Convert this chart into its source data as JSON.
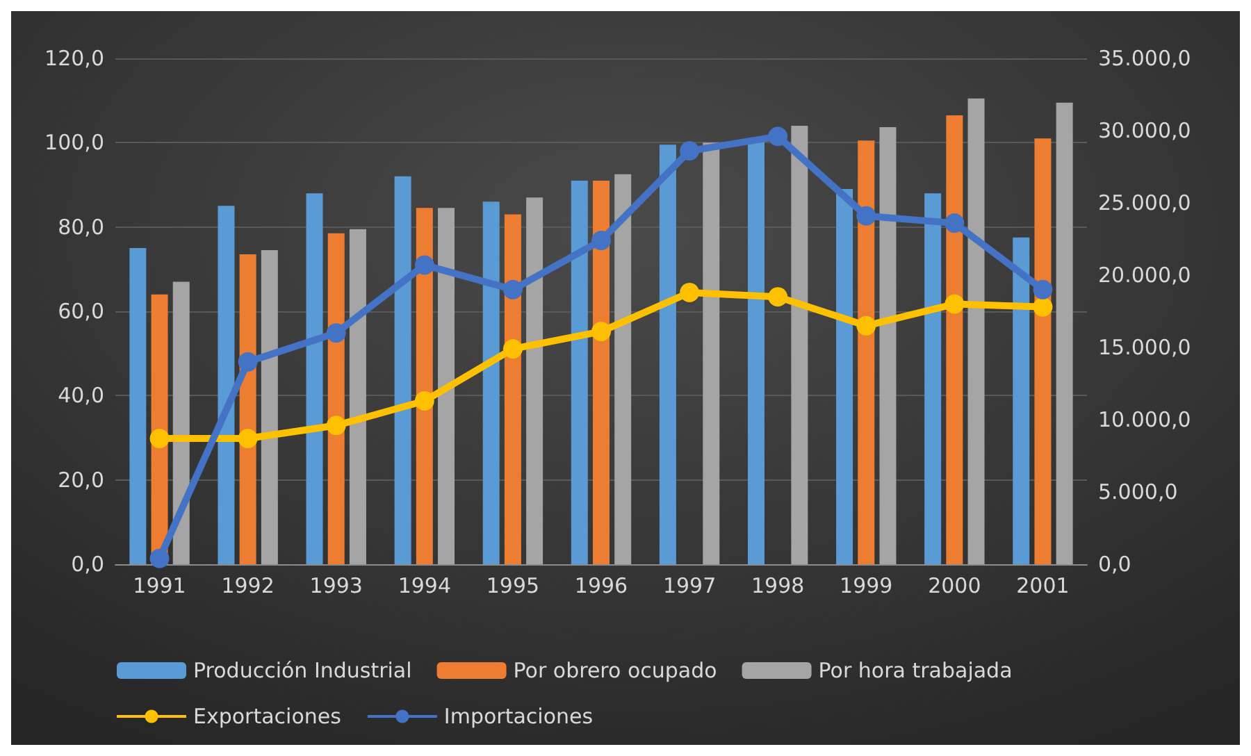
{
  "chart_data": {
    "type": "bar",
    "categories": [
      "1991",
      "1992",
      "1993",
      "1994",
      "1995",
      "1996",
      "1997",
      "1998",
      "1999",
      "2000",
      "2001"
    ],
    "series": [
      {
        "name": "Producción Industrial",
        "color": "#5b9bd5",
        "values": [
          75,
          85,
          88,
          92,
          86,
          91,
          99.5,
          101,
          89,
          88,
          77.5
        ]
      },
      {
        "name": "Por obrero ocupado",
        "color": "#ed7d31",
        "values": [
          64,
          73.5,
          78.5,
          84.5,
          83,
          91,
          null,
          null,
          100.5,
          106.5,
          101
        ]
      },
      {
        "name": "Por hora trabajada",
        "color": "#a5a5a5",
        "values": [
          67,
          74.5,
          79.5,
          84.5,
          87,
          92.5,
          100,
          104,
          103.7,
          110.5,
          109.5
        ]
      },
      {
        "name": "Exportaciones",
        "type": "line",
        "axis": "y2",
        "color": "#ffc000",
        "values": [
          8700,
          8700,
          9600,
          11300,
          14900,
          16100,
          18800,
          18500,
          16500,
          18000,
          17800
        ]
      },
      {
        "name": "Importaciones",
        "type": "line",
        "axis": "y2",
        "color": "#4472c4",
        "values": [
          400,
          14000,
          16000,
          20700,
          19000,
          22400,
          28600,
          29600,
          24100,
          23600,
          19000
        ]
      }
    ],
    "ylim": [
      0,
      120
    ],
    "yticks": [
      {
        "value": 0,
        "label": "0,0"
      },
      {
        "value": 20,
        "label": "20,0"
      },
      {
        "value": 40,
        "label": "40,0"
      },
      {
        "value": 60,
        "label": "60,0"
      },
      {
        "value": 80,
        "label": "80,0"
      },
      {
        "value": 100,
        "label": "100,0"
      },
      {
        "value": 120,
        "label": "120,0"
      }
    ],
    "y2lim": [
      0,
      35000
    ],
    "y2ticks": [
      {
        "value": 0,
        "label": "0,0"
      },
      {
        "value": 5000,
        "label": "5.000,0"
      },
      {
        "value": 10000,
        "label": "10.000,0"
      },
      {
        "value": 15000,
        "label": "15.000,0"
      },
      {
        "value": 20000,
        "label": "20.000,0"
      },
      {
        "value": 25000,
        "label": "25.000,0"
      },
      {
        "value": 30000,
        "label": "30.000,0"
      },
      {
        "value": 35000,
        "label": "35.000,0"
      }
    ],
    "grid": "y",
    "legend": "bottom",
    "marker": "circle"
  }
}
